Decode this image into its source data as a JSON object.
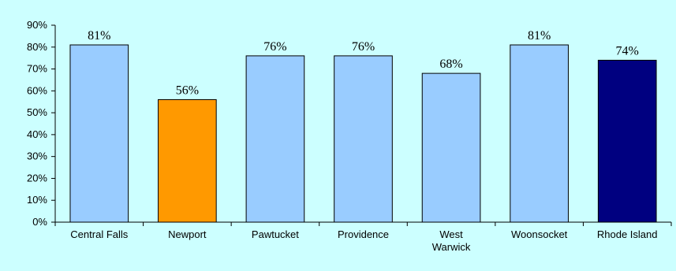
{
  "background": "#ccffff",
  "chart_data": {
    "type": "bar",
    "categories": [
      "Central Falls",
      "Newport",
      "Pawtucket",
      "Providence",
      "West Warwick",
      "Woonsocket",
      "Rhode Island"
    ],
    "category_lines": [
      [
        "Central Falls"
      ],
      [
        "Newport"
      ],
      [
        "Pawtucket"
      ],
      [
        "Providence"
      ],
      [
        "West",
        "Warwick"
      ],
      [
        "Woonsocket"
      ],
      [
        "Rhode Island"
      ]
    ],
    "values": [
      81,
      56,
      76,
      76,
      68,
      81,
      74
    ],
    "data_labels": [
      "81%",
      "56%",
      "76%",
      "76%",
      "68%",
      "81%",
      "74%"
    ],
    "bar_colors": [
      "#99ccff",
      "#ff9900",
      "#99ccff",
      "#99ccff",
      "#99ccff",
      "#99ccff",
      "#000080"
    ],
    "ylim": [
      0,
      90
    ],
    "yticks": [
      0,
      10,
      20,
      30,
      40,
      50,
      60,
      70,
      80,
      90
    ],
    "ytick_labels": [
      "0%",
      "10%",
      "20%",
      "30%",
      "40%",
      "50%",
      "60%",
      "70%",
      "80%",
      "90%"
    ],
    "grid": false,
    "legend": "none",
    "title": "",
    "xlabel": "",
    "ylabel": ""
  }
}
